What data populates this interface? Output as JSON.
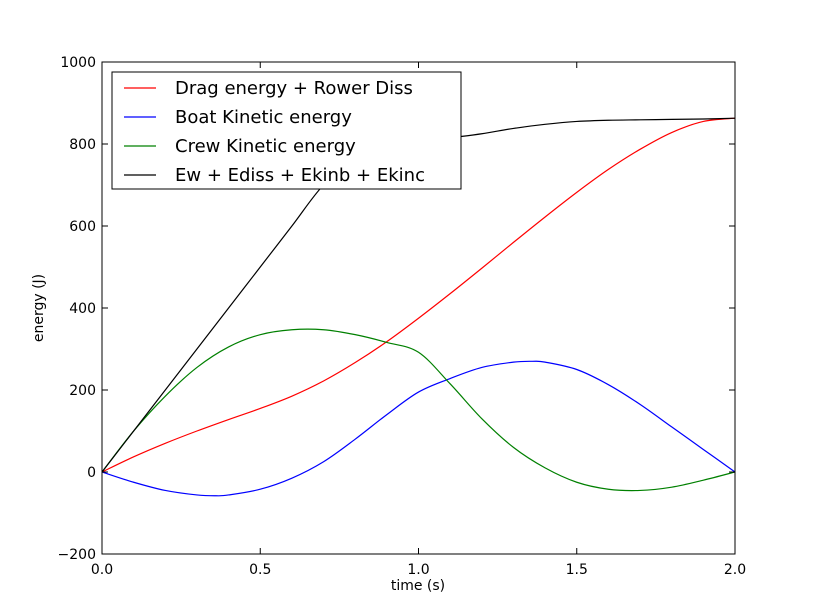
{
  "chart_data": {
    "type": "line",
    "title": "",
    "xlabel": "time (s)",
    "ylabel": "energy (J)",
    "xlim": [
      0.0,
      2.0
    ],
    "ylim": [
      -200,
      1000
    ],
    "xticks": [
      "0.0",
      "0.5",
      "1.0",
      "1.5",
      "2.0"
    ],
    "yticks": [
      "−200",
      "0",
      "200",
      "400",
      "600",
      "800",
      "1000"
    ],
    "grid": false,
    "legend_position": "top-left",
    "series": [
      {
        "name": "Drag energy + Rower Diss",
        "color": "#ff0000",
        "x": [
          0.0,
          0.1,
          0.2,
          0.3,
          0.4,
          0.5,
          0.6,
          0.7,
          0.8,
          0.9,
          1.0,
          1.1,
          1.2,
          1.3,
          1.4,
          1.5,
          1.6,
          1.7,
          1.8,
          1.9,
          2.0
        ],
        "y": [
          0,
          37,
          70,
          100,
          128,
          155,
          185,
          222,
          267,
          318,
          375,
          435,
          497,
          560,
          622,
          682,
          738,
          787,
          828,
          855,
          863
        ]
      },
      {
        "name": "Boat Kinetic energy",
        "color": "#0000ff",
        "x": [
          0.0,
          0.1,
          0.2,
          0.3,
          0.36,
          0.4,
          0.5,
          0.6,
          0.7,
          0.8,
          0.9,
          1.0,
          1.1,
          1.2,
          1.3,
          1.36,
          1.4,
          1.5,
          1.6,
          1.7,
          1.8,
          1.9,
          2.0
        ],
        "y": [
          0,
          -25,
          -45,
          -56,
          -58,
          -56,
          -42,
          -15,
          25,
          80,
          140,
          195,
          228,
          255,
          268,
          270,
          268,
          250,
          213,
          165,
          110,
          55,
          0
        ]
      },
      {
        "name": "Crew Kinetic energy",
        "color": "#008000",
        "x": [
          0.0,
          0.1,
          0.2,
          0.3,
          0.4,
          0.5,
          0.6,
          0.7,
          0.8,
          0.9,
          1.0,
          1.1,
          1.2,
          1.3,
          1.4,
          1.5,
          1.6,
          1.7,
          1.8,
          1.9,
          2.0
        ],
        "y": [
          0,
          100,
          185,
          255,
          305,
          335,
          347,
          347,
          335,
          316,
          292,
          215,
          130,
          60,
          10,
          -25,
          -42,
          -45,
          -37,
          -20,
          0
        ]
      },
      {
        "name": "Ew + Ediss + Ekinb + Ekinc",
        "color": "#000000",
        "x": [
          0.0,
          0.1,
          0.2,
          0.3,
          0.4,
          0.5,
          0.6,
          0.7,
          0.8,
          0.9,
          1.0,
          1.1,
          1.2,
          1.3,
          1.4,
          1.5,
          1.6,
          1.7,
          1.8,
          1.9,
          2.0
        ],
        "y": [
          0,
          100,
          200,
          300,
          400,
          500,
          600,
          700,
          760,
          795,
          805,
          815,
          825,
          838,
          848,
          855,
          858,
          859,
          860,
          861,
          863
        ]
      }
    ]
  }
}
